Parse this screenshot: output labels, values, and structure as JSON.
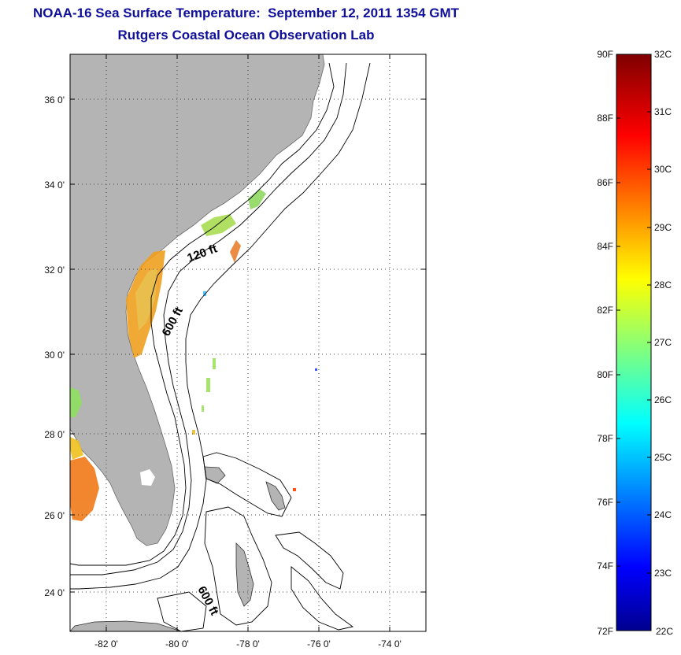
{
  "title_line1": "NOAA-16 Sea Surface Temperature:  September 12, 2011 1354 GMT",
  "title_line2": "Rutgers Coastal Ocean Observation Lab",
  "map": {
    "lon_range": [
      -83,
      -73
    ],
    "lat_range": [
      23,
      37
    ],
    "lon_ticks": [
      "-82 0'",
      "-80 0'",
      "-78 0'",
      "-76 0'",
      "-74 0'"
    ],
    "lat_ticks": [
      "36 0'",
      "34 0'",
      "32 0'",
      "30 0'",
      "28 0'",
      "26 0'",
      "24 0'"
    ],
    "grid": true,
    "land_color": "#b4b4b4",
    "contour_labels": [
      "120 ft",
      "600 ft",
      "600 ft"
    ]
  },
  "colorbar": {
    "colormap": "jet",
    "fahrenheit_labels": [
      "90F",
      "88F",
      "86F",
      "84F",
      "82F",
      "80F",
      "78F",
      "76F",
      "74F",
      "72F"
    ],
    "celsius_labels": [
      "32C",
      "31C",
      "30C",
      "29C",
      "28C",
      "27C",
      "26C",
      "25C",
      "24C",
      "23C",
      "22C"
    ],
    "range_c": [
      22,
      32
    ]
  }
}
